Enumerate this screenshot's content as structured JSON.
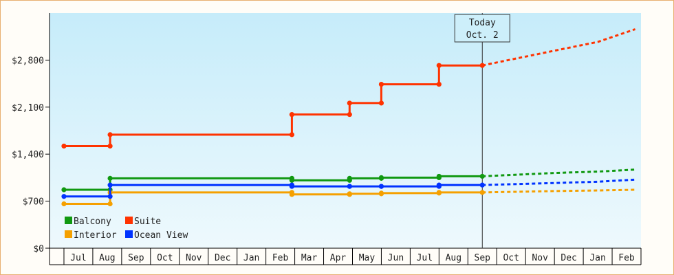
{
  "chart_data": {
    "type": "line",
    "title": "",
    "xlabel": "",
    "ylabel": "",
    "ylim": [
      0,
      3500
    ],
    "y_ticks": [
      {
        "value": 0,
        "label": "$0"
      },
      {
        "value": 700,
        "label": "$700"
      },
      {
        "value": 1400,
        "label": "$1,400"
      },
      {
        "value": 2100,
        "label": "$2,100"
      },
      {
        "value": 2800,
        "label": "$2,800"
      }
    ],
    "x_ticks": [
      "Jul",
      "Aug",
      "Sep",
      "Oct",
      "Nov",
      "Dec",
      "Jan",
      "Feb",
      "Mar",
      "Apr",
      "May",
      "Jun",
      "Jul",
      "Aug",
      "Sep",
      "Oct",
      "Nov",
      "Dec",
      "Jan",
      "Feb"
    ],
    "x_start_month_index": 0.5,
    "today_marker": {
      "line1": "Today",
      "line2": "Oct. 2",
      "x": 15.0
    },
    "legend_placement": "bottom-left",
    "grid": false,
    "series": [
      {
        "name": "Balcony",
        "color": "#119911",
        "points": [
          [
            0.5,
            870
          ],
          [
            2.1,
            870
          ],
          [
            2.1,
            1040
          ],
          [
            8.4,
            1040
          ],
          [
            8.4,
            1010
          ],
          [
            10.4,
            1010
          ],
          [
            10.4,
            1040
          ],
          [
            11.5,
            1040
          ],
          [
            11.5,
            1050
          ],
          [
            13.5,
            1050
          ],
          [
            13.5,
            1070
          ],
          [
            15.0,
            1070
          ]
        ],
        "forecast": [
          [
            15.0,
            1070
          ],
          [
            17.5,
            1120
          ],
          [
            19.0,
            1140
          ],
          [
            20.3,
            1170
          ]
        ]
      },
      {
        "name": "Suite",
        "color": "#ff3300",
        "points": [
          [
            0.5,
            1520
          ],
          [
            2.1,
            1520
          ],
          [
            2.1,
            1690
          ],
          [
            8.4,
            1690
          ],
          [
            8.4,
            1990
          ],
          [
            10.4,
            1990
          ],
          [
            10.4,
            2160
          ],
          [
            11.5,
            2160
          ],
          [
            11.5,
            2440
          ],
          [
            13.5,
            2440
          ],
          [
            13.5,
            2720
          ],
          [
            15.0,
            2720
          ]
        ],
        "forecast": [
          [
            15.0,
            2720
          ],
          [
            17.5,
            2940
          ],
          [
            19.0,
            3070
          ],
          [
            20.3,
            3260
          ]
        ]
      },
      {
        "name": "Interior",
        "color": "#f5a000",
        "points": [
          [
            0.5,
            660
          ],
          [
            2.1,
            660
          ],
          [
            2.1,
            830
          ],
          [
            8.4,
            830
          ],
          [
            8.4,
            800
          ],
          [
            10.4,
            800
          ],
          [
            10.4,
            810
          ],
          [
            11.5,
            810
          ],
          [
            11.5,
            820
          ],
          [
            13.5,
            820
          ],
          [
            13.5,
            830
          ],
          [
            15.0,
            830
          ]
        ],
        "forecast": [
          [
            15.0,
            830
          ],
          [
            17.5,
            850
          ],
          [
            19.0,
            860
          ],
          [
            20.3,
            870
          ]
        ]
      },
      {
        "name": "Ocean View",
        "color": "#0033ff",
        "points": [
          [
            0.5,
            770
          ],
          [
            2.1,
            770
          ],
          [
            2.1,
            940
          ],
          [
            8.4,
            940
          ],
          [
            8.4,
            920
          ],
          [
            10.4,
            920
          ],
          [
            10.4,
            920
          ],
          [
            11.5,
            920
          ],
          [
            11.5,
            920
          ],
          [
            13.5,
            920
          ],
          [
            13.5,
            940
          ],
          [
            15.0,
            940
          ]
        ],
        "forecast": [
          [
            15.0,
            940
          ],
          [
            17.5,
            970
          ],
          [
            19.0,
            990
          ],
          [
            20.3,
            1020
          ]
        ]
      }
    ]
  }
}
